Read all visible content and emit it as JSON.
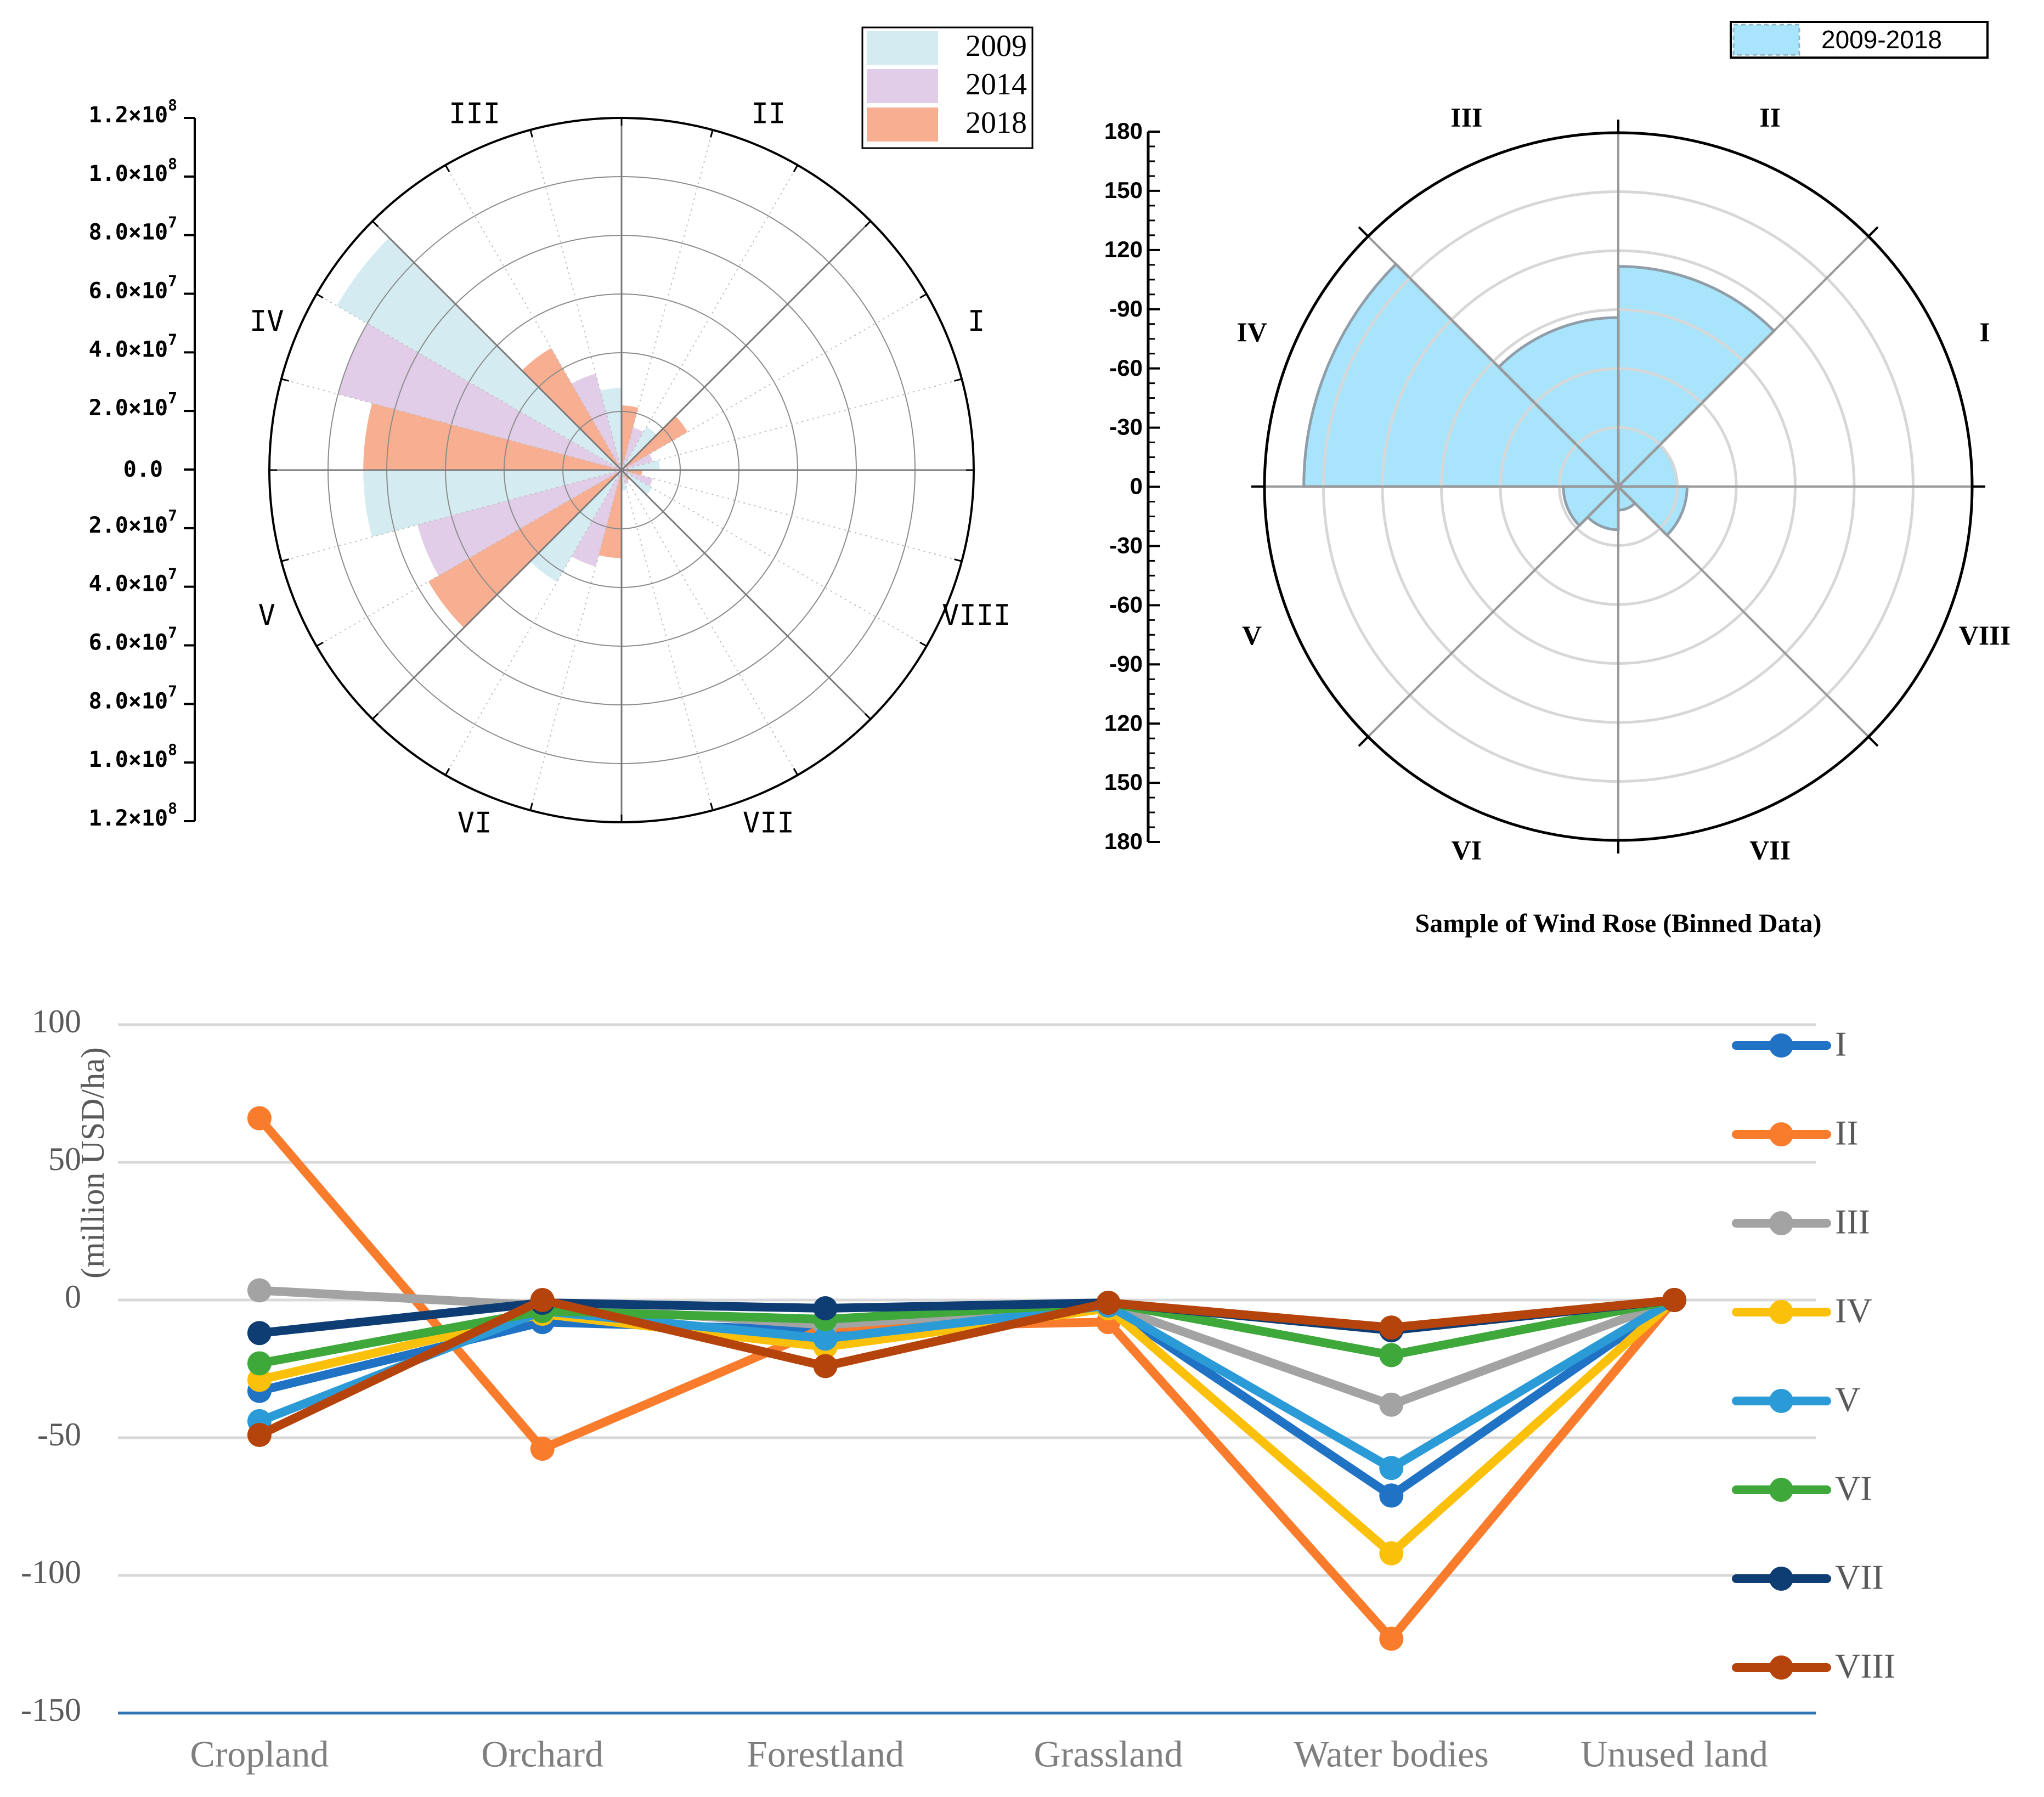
{
  "chart_data": [
    {
      "id": "rose-left",
      "type": "polar-bar",
      "title": "",
      "sectors": [
        "I",
        "II",
        "III",
        "IV",
        "V",
        "VI",
        "VII",
        "VIII"
      ],
      "axis_tick_labels": [
        "1.2×10^8",
        "1.0×10^8",
        "8.0×10^7",
        "6.0×10^7",
        "4.0×10^7",
        "2.0×10^7",
        "0.0",
        "2.0×10^7",
        "4.0×10^7",
        "6.0×10^7",
        "8.0×10^7",
        "1.0×10^8",
        "1.2×10^8"
      ],
      "axis_tick_mantissa": [
        "1.2",
        "1.0",
        "8.0",
        "6.0",
        "4.0",
        "2.0",
        "0.0",
        "2.0",
        "4.0",
        "6.0",
        "8.0",
        "1.0",
        "1.2"
      ],
      "axis_tick_exponent": [
        "8",
        "8",
        "7",
        "7",
        "7",
        "7",
        "",
        "7",
        "7",
        "7",
        "7",
        "8",
        "8"
      ],
      "times_sign": "×10",
      "rmax": 120000000,
      "legend_position": "top-right",
      "series": [
        {
          "name": "2009",
          "color": "#d4ebf1",
          "values": [
            13000000,
            17000000,
            28000000,
            112000000,
            88000000,
            44000000,
            7000000,
            12000000
          ]
        },
        {
          "name": "2014",
          "color": "#e2cde8",
          "values": [
            11000000,
            15000000,
            34000000,
            100000000,
            72000000,
            34000000,
            5000000,
            11000000
          ]
        },
        {
          "name": "2018",
          "color": "#f7ae91",
          "values": [
            26000000,
            22000000,
            48000000,
            88000000,
            76000000,
            30000000,
            4000000,
            7000000
          ]
        }
      ]
    },
    {
      "id": "rose-right",
      "type": "polar-bar",
      "title": "Sample of Wind Rose (Binned Data)",
      "sectors": [
        "I",
        "II",
        "III",
        "IV",
        "V",
        "VI",
        "VII",
        "VIII"
      ],
      "axis_tick_labels": [
        "180",
        "150",
        "120",
        "-90",
        "-60",
        "-30",
        "0",
        "-30",
        "-60",
        "-90",
        "120",
        "150",
        "180"
      ],
      "rmax": 180,
      "legend_position": "top-right",
      "series": [
        {
          "name": "2009-2018",
          "color": "#a8e4fb",
          "values": [
            30,
            112,
            86,
            160,
            28,
            22,
            12,
            35
          ]
        }
      ]
    },
    {
      "id": "line-chart",
      "type": "line",
      "title": "",
      "xlabel": "",
      "ylabel": "(million USD/ha)",
      "ylim": [
        -150,
        100
      ],
      "yticks": [
        "100",
        "50",
        "0",
        "-50",
        "-100",
        "-150"
      ],
      "categories": [
        "Cropland",
        "Orchard",
        "Forestland",
        "Grassland",
        "Water bodies",
        "Unused land"
      ],
      "legend_position": "right",
      "series": [
        {
          "name": "I",
          "color": "#1f72c4",
          "values": [
            -33,
            -8,
            -11,
            -2,
            -71,
            0
          ]
        },
        {
          "name": "II",
          "color": "#f97c2c",
          "values": [
            66,
            -54,
            -10,
            -8,
            -123,
            0
          ]
        },
        {
          "name": "III",
          "color": "#a3a3a3",
          "values": [
            3.5,
            -2,
            -9,
            -2,
            -38,
            0
          ]
        },
        {
          "name": "IV",
          "color": "#fbc10a",
          "values": [
            -29,
            -5,
            -17,
            -3,
            -92,
            0
          ]
        },
        {
          "name": "V",
          "color": "#2b9bd8",
          "values": [
            -44,
            -4,
            -14,
            -2,
            -61,
            0
          ]
        },
        {
          "name": "VI",
          "color": "#3ea83a",
          "values": [
            -23,
            -4,
            -7,
            -1,
            -20,
            0
          ]
        },
        {
          "name": "VII",
          "color": "#0e3d73",
          "values": [
            -12,
            -1,
            -3,
            -1,
            -11,
            0
          ]
        },
        {
          "name": "VIII",
          "color": "#b5440c",
          "values": [
            -49,
            0,
            -24,
            -1,
            -10,
            0
          ]
        }
      ]
    }
  ]
}
